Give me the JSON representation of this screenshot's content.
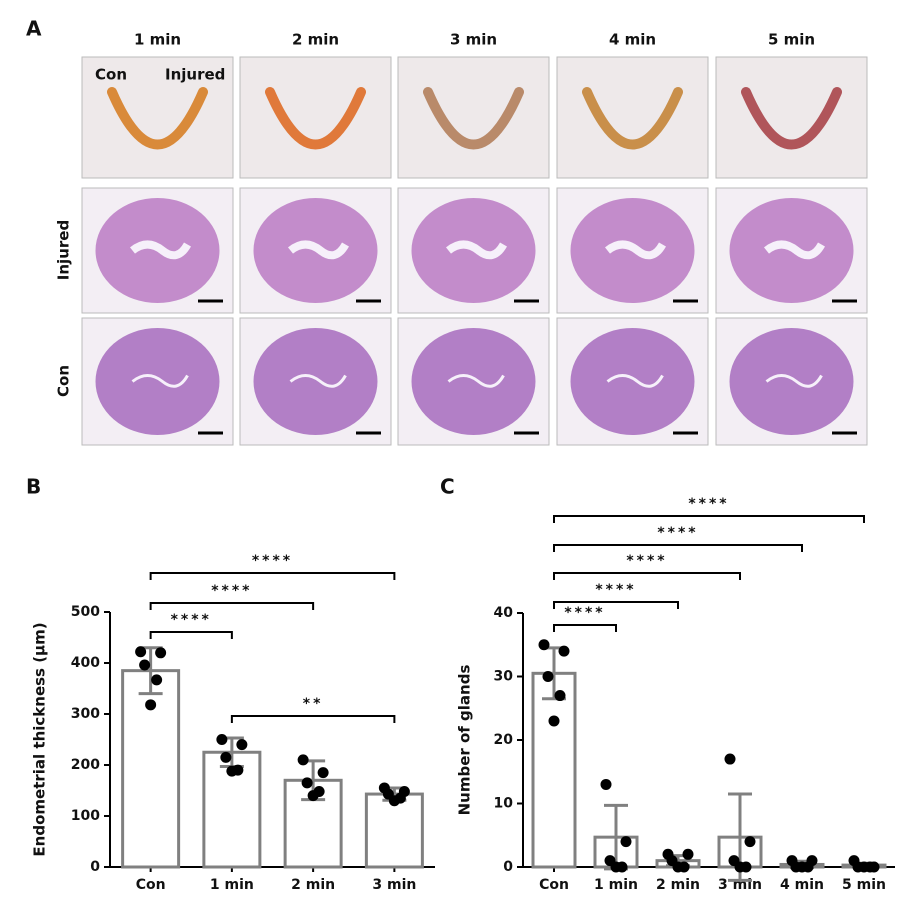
{
  "panel_a": {
    "label": "A",
    "columns": [
      "1 min",
      "2 min",
      "3 min",
      "4 min",
      "5 min"
    ],
    "rows": [
      "Injured",
      "Con"
    ],
    "photo_labels": [
      "Con",
      "Injured"
    ]
  },
  "chart_data": [
    {
      "type": "bar",
      "label": "B",
      "ylabel": "Endometrial thickness (μm)",
      "categories": [
        "Con",
        "1 min",
        "2 min",
        "3 min"
      ],
      "values": [
        385,
        225,
        170,
        143
      ],
      "errors": [
        45,
        28,
        38,
        12
      ],
      "points": [
        [
          422,
          420,
          396,
          367,
          318
        ],
        [
          250,
          240,
          215,
          190,
          188
        ],
        [
          210,
          185,
          165,
          148,
          140
        ],
        [
          155,
          148,
          143,
          135,
          130
        ]
      ],
      "ylim": [
        0,
        500
      ],
      "yticks": [
        0,
        100,
        200,
        300,
        400,
        500
      ],
      "color": "#808080",
      "comparisons": [
        {
          "groups": [
            "Con",
            "1 min"
          ],
          "label": "****"
        },
        {
          "groups": [
            "Con",
            "2 min"
          ],
          "label": "****"
        },
        {
          "groups": [
            "Con",
            "3 min"
          ],
          "label": "****"
        },
        {
          "groups": [
            "1 min",
            "3 min"
          ],
          "label": "**"
        }
      ]
    },
    {
      "type": "bar",
      "label": "C",
      "ylabel": "Number of glands",
      "categories": [
        "Con",
        "1 min",
        "2 min",
        "3 min",
        "4 min",
        "5 min"
      ],
      "values": [
        30.5,
        4.7,
        1.0,
        4.7,
        0.4,
        0.3
      ],
      "errors": [
        4,
        5,
        0.8,
        6.8,
        0.5,
        0.3
      ],
      "points": [
        [
          35,
          34,
          30,
          27,
          23
        ],
        [
          13,
          4,
          1,
          0,
          0
        ],
        [
          2,
          2,
          1,
          0,
          0
        ],
        [
          17,
          4,
          1,
          0,
          0
        ],
        [
          1,
          1,
          0,
          0,
          0
        ],
        [
          1,
          0,
          0,
          0,
          0
        ]
      ],
      "ylim": [
        0,
        40
      ],
      "yticks": [
        0,
        10,
        20,
        30,
        40
      ],
      "color": "#808080",
      "comparisons": [
        {
          "groups": [
            "Con",
            "1 min"
          ],
          "label": "****"
        },
        {
          "groups": [
            "Con",
            "2 min"
          ],
          "label": "****"
        },
        {
          "groups": [
            "Con",
            "3 min"
          ],
          "label": "****"
        },
        {
          "groups": [
            "Con",
            "4 min"
          ],
          "label": "****"
        },
        {
          "groups": [
            "Con",
            "5 min"
          ],
          "label": "****"
        }
      ]
    }
  ]
}
